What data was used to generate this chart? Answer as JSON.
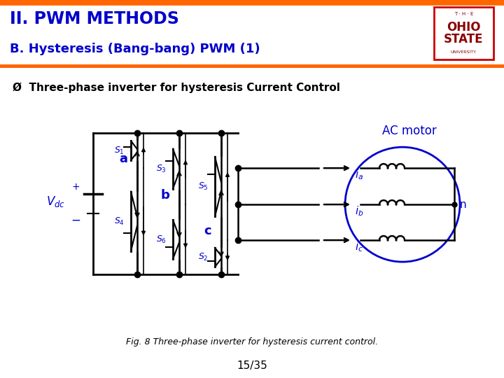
{
  "title1": "II. PWM METHODS",
  "title2": "B. Hysteresis (Bang-bang) PWM (1)",
  "subtitle": "Ø  Three-phase inverter for hysteresis Current Control",
  "fig_caption": "Fig. 8 Three-phase inverter for hysteresis current control.",
  "page": "15/35",
  "title1_color": "#0000CC",
  "title2_color": "#0000CC",
  "ac_motor_color": "#0000CC",
  "circuit_color": "#000000",
  "label_color": "#0000CC",
  "header_border": "#FF6600",
  "body_bg": "#FFFFFF",
  "logo_border": "#CC0000",
  "logo_text": "#8B0000"
}
